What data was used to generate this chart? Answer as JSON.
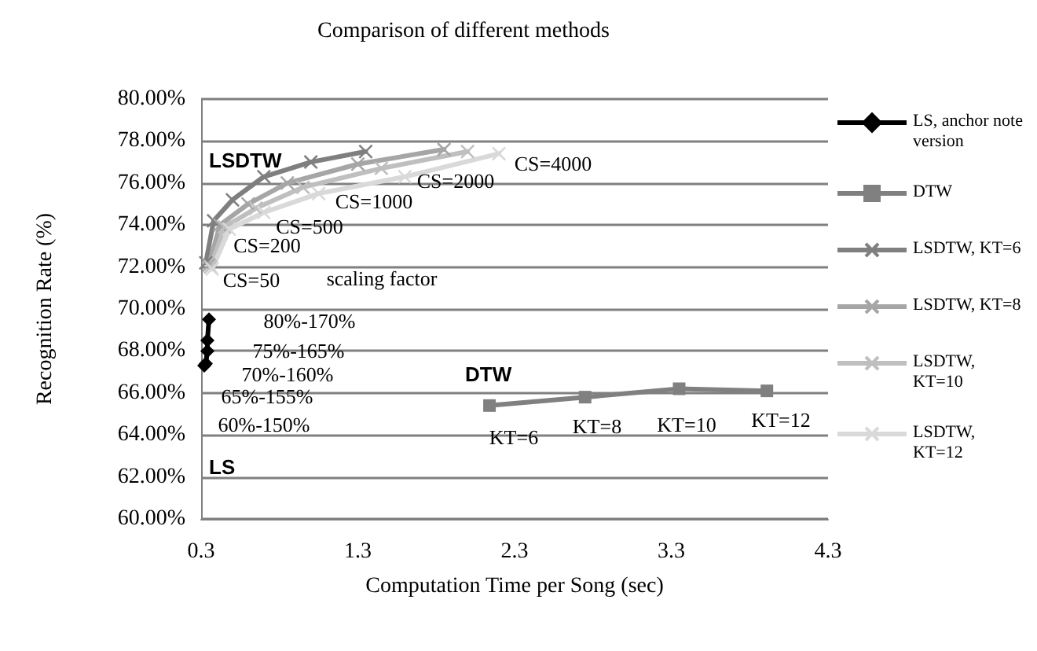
{
  "chart_data": {
    "type": "line",
    "title": "Comparison of different methods",
    "xlabel": "Computation Time per Song (sec)",
    "ylabel": "Recognition Rate (%)",
    "xlim": [
      0.3,
      4.3
    ],
    "xticks": [
      0.3,
      1.3,
      2.3,
      3.3,
      4.3
    ],
    "ylim": [
      60,
      80
    ],
    "yticks": [
      {
        "value": 60,
        "label": "60.00%"
      },
      {
        "value": 62,
        "label": "62.00%"
      },
      {
        "value": 64,
        "label": "64.00%"
      },
      {
        "value": 66,
        "label": "66.00%"
      },
      {
        "value": 68,
        "label": "68.00%"
      },
      {
        "value": 70,
        "label": "70.00%"
      },
      {
        "value": 72,
        "label": "72.00%"
      },
      {
        "value": 74,
        "label": "74.00%"
      },
      {
        "value": 76,
        "label": "76.00%"
      },
      {
        "value": 78,
        "label": "78.00%"
      },
      {
        "value": 80,
        "label": "80.00%"
      }
    ],
    "grid": "y",
    "legend": "right",
    "line_style": "solid",
    "series": [
      {
        "name": "LS, anchor note version",
        "color": "#000000",
        "marker": "diamond",
        "x": [
          0.32,
          0.33,
          0.34,
          0.34,
          0.35
        ],
        "values": [
          67.3,
          67.4,
          68.0,
          68.5,
          69.5
        ]
      },
      {
        "name": "DTW",
        "color": "#808080",
        "marker": "square",
        "x": [
          2.14,
          2.75,
          3.35,
          3.91
        ],
        "values": [
          65.4,
          65.8,
          66.2,
          66.1
        ]
      },
      {
        "name": "LSDTW, KT=6",
        "color": "#7f7f7f",
        "marker": "cross",
        "x": [
          0.33,
          0.38,
          0.5,
          0.7,
          1.0,
          1.35
        ],
        "values": [
          72.2,
          74.2,
          75.2,
          76.3,
          77.0,
          77.5
        ]
      },
      {
        "name": "LSDTW, KT=8",
        "color": "#a6a6a6",
        "marker": "cross",
        "x": [
          0.35,
          0.42,
          0.6,
          0.85,
          1.3,
          1.85
        ],
        "values": [
          72.1,
          74.0,
          75.0,
          76.0,
          76.9,
          77.6
        ]
      },
      {
        "name": "LSDTW, KT=10",
        "color": "#bfbfbf",
        "marker": "cross",
        "x": [
          0.36,
          0.45,
          0.65,
          0.95,
          1.45,
          2.0
        ],
        "values": [
          72.0,
          73.9,
          74.8,
          75.8,
          76.7,
          77.5
        ]
      },
      {
        "name": "LSDTW, KT=12",
        "color": "#d9d9d9",
        "marker": "cross",
        "x": [
          0.37,
          0.48,
          0.7,
          1.05,
          1.6,
          2.2
        ],
        "values": [
          71.9,
          73.8,
          74.6,
          75.5,
          76.3,
          77.4
        ]
      }
    ],
    "annotations": [
      "LSDTW",
      "CS=4000",
      "CS=2000",
      "CS=1000",
      "CS=500",
      "CS=200",
      "CS=50",
      "scaling factor",
      "80%-170%",
      "75%-165%",
      "70%-160%",
      "65%-155%",
      "60%-150%",
      "LS",
      "DTW",
      "KT=6",
      "KT=8",
      "KT=10",
      "KT=12"
    ]
  }
}
